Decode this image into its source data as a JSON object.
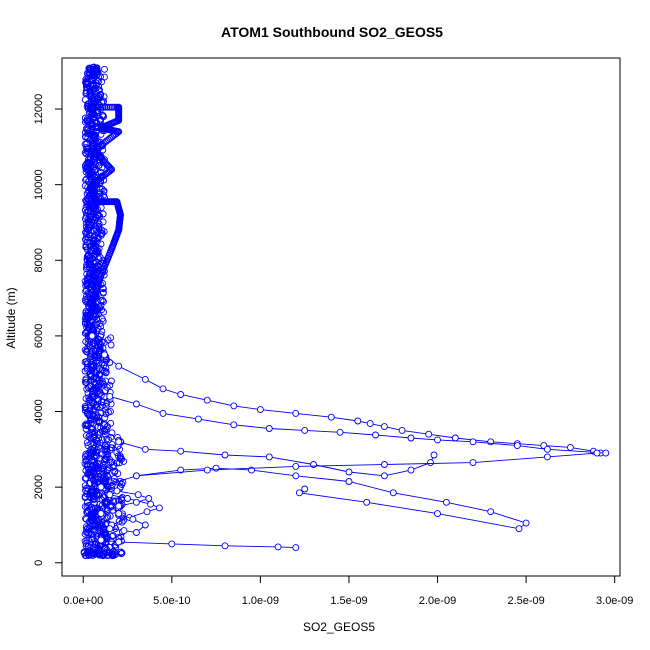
{
  "chart_data": {
    "type": "scatter",
    "title": "ATOM1 Southbound SO2_GEOS5",
    "xlabel": "SO2_GEOS5",
    "ylabel": "Altitude (m)",
    "xlim": [
      -1.2e-10,
      3.03e-09
    ],
    "ylim": [
      -350,
      13350
    ],
    "xticks": [
      0,
      5e-10,
      1e-09,
      1.5e-09,
      2e-09,
      2.5e-09,
      3e-09
    ],
    "xtick_labels": [
      "0.0e+00",
      "5.0e-10",
      "1.0e-09",
      "1.5e-09",
      "2.0e-09",
      "2.5e-09",
      "3.0e-09"
    ],
    "yticks": [
      0,
      2000,
      4000,
      6000,
      8000,
      10000,
      12000
    ],
    "ytick_labels": [
      "0",
      "2000",
      "4000",
      "6000",
      "8000",
      "10000",
      "12000"
    ],
    "marker": "open-circle",
    "lines": true,
    "grid": false,
    "color": "#0000ff",
    "profiles": [
      {
        "x": [
          1e-10,
          2e-10,
          5e-10,
          8e-10,
          1.1e-09,
          1.2e-09
        ],
        "y": [
          600,
          550,
          500,
          450,
          420,
          400
        ]
      },
      {
        "x": [
          5e-11,
          1.2e-10,
          2e-10,
          3.5e-10,
          4.5e-10,
          5.5e-10,
          7e-10,
          8.5e-10,
          1e-09,
          1.2e-09,
          1.4e-09,
          1.55e-09,
          1.62e-09,
          1.7e-09,
          1.8e-09,
          1.95e-09,
          2.1e-09,
          2.3e-09,
          2.45e-09,
          2.6e-09,
          2.75e-09,
          2.88e-09,
          2.92e-09
        ],
        "y": [
          6000,
          5500,
          5200,
          4850,
          4600,
          4450,
          4300,
          4150,
          4050,
          3950,
          3850,
          3750,
          3680,
          3600,
          3500,
          3400,
          3300,
          3200,
          3150,
          3100,
          3050,
          2950,
          2900
        ]
      },
      {
        "x": [
          1.5e-10,
          3e-10,
          4.5e-10,
          6.5e-10,
          8.5e-10,
          1.05e-09,
          1.25e-09,
          1.45e-09,
          1.65e-09,
          1.85e-09,
          2e-09,
          2.2e-09,
          2.45e-09,
          2.62e-09,
          2.95e-09
        ],
        "y": [
          4400,
          4200,
          3950,
          3800,
          3650,
          3550,
          3500,
          3450,
          3380,
          3300,
          3250,
          3200,
          3100,
          3000,
          2900
        ]
      },
      {
        "x": [
          2e-10,
          3.5e-10,
          5.5e-10,
          8e-10,
          1.05e-09,
          1.3e-09,
          1.5e-09,
          1.7e-09,
          1.85e-09,
          1.96e-09,
          1.98e-09
        ],
        "y": [
          3200,
          3000,
          2950,
          2850,
          2800,
          2600,
          2400,
          2300,
          2450,
          2650,
          2850
        ]
      },
      {
        "x": [
          3e-10,
          5.5e-10,
          7.5e-10,
          9.5e-10,
          1.2e-09,
          1.5e-09,
          1.75e-09,
          2.05e-09,
          2.3e-09,
          2.5e-09,
          2.46e-09,
          2e-09,
          1.6e-09,
          1.22e-09,
          1.25e-09
        ],
        "y": [
          2300,
          2450,
          2500,
          2450,
          2300,
          2150,
          1850,
          1600,
          1350,
          1050,
          900,
          1300,
          1600,
          1850,
          1950
        ]
      },
      {
        "x": [
          1e-10,
          3e-10,
          7e-10,
          1.2e-09,
          1.7e-09,
          2.2e-09,
          2.62e-09,
          2.9e-09
        ],
        "y": [
          2000,
          2300,
          2450,
          2550,
          2600,
          2650,
          2800,
          2900
        ]
      },
      {
        "x": [
          1.5e-10,
          2.5e-10,
          3.8e-10,
          4.3e-10,
          3.6e-10,
          2.6e-10,
          1.6e-10
        ],
        "y": [
          1800,
          1700,
          1550,
          1450,
          1350,
          1200,
          1000
        ]
      },
      {
        "x": [
          1e-10,
          2e-10,
          3e-10,
          3.7e-10,
          3.1e-10,
          1.9e-10,
          1e-10
        ],
        "y": [
          1300,
          1500,
          1600,
          1700,
          1800,
          1900,
          2000
        ]
      },
      {
        "x": [
          1.5e-10,
          2.3e-10,
          3e-10,
          3.5e-10,
          2.8e-10,
          2e-10
        ],
        "y": [
          900,
          850,
          800,
          1000,
          1150,
          1300
        ]
      }
    ]
  }
}
